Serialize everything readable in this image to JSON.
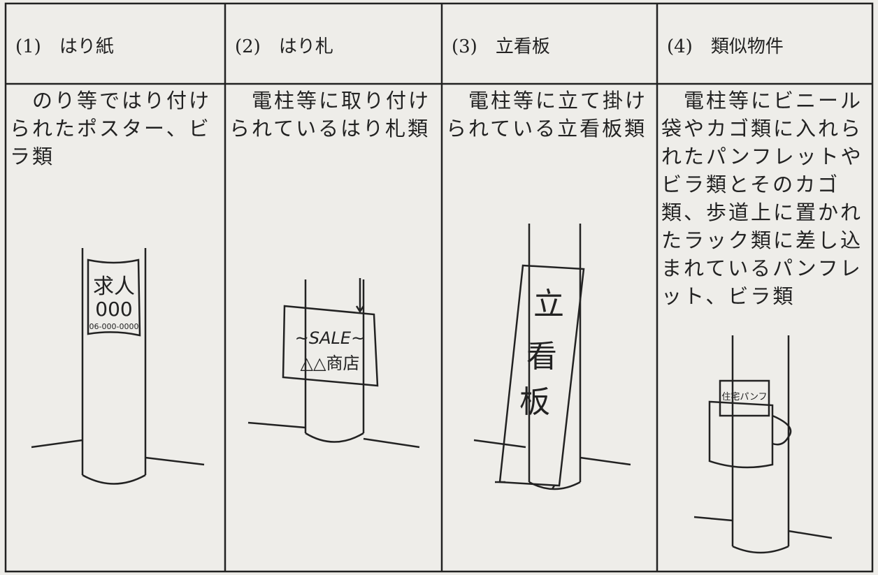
{
  "columns": [
    {
      "heading": "(1)　はり紙",
      "description": [
        "のり等ではり付け",
        "られたポスター、ビ",
        "ラ類"
      ],
      "sign_text": [
        "求人",
        "000",
        "06-000-0000"
      ]
    },
    {
      "heading": "(2)　はり札",
      "description": [
        "電柱等に取り付け",
        "られているはり札類"
      ],
      "sign_text": [
        "~SALE~",
        "△△商店"
      ]
    },
    {
      "heading": "(3)　立看板",
      "description": [
        "電柱等に立て掛け",
        "られている立看板類"
      ],
      "sign_text": [
        "立",
        "看",
        "板"
      ]
    },
    {
      "heading": "(4)　類似物件",
      "description": [
        "電柱等にビニール",
        "袋やカゴ類に入れら",
        "れたパンフレットや",
        "ビラ類とそのカゴ",
        "類、歩道上に置かれ",
        "たラック類に差し込",
        "まれているパンフレ",
        "ット、ビラ類"
      ],
      "sign_text": [
        "住宅パンフ"
      ]
    }
  ]
}
